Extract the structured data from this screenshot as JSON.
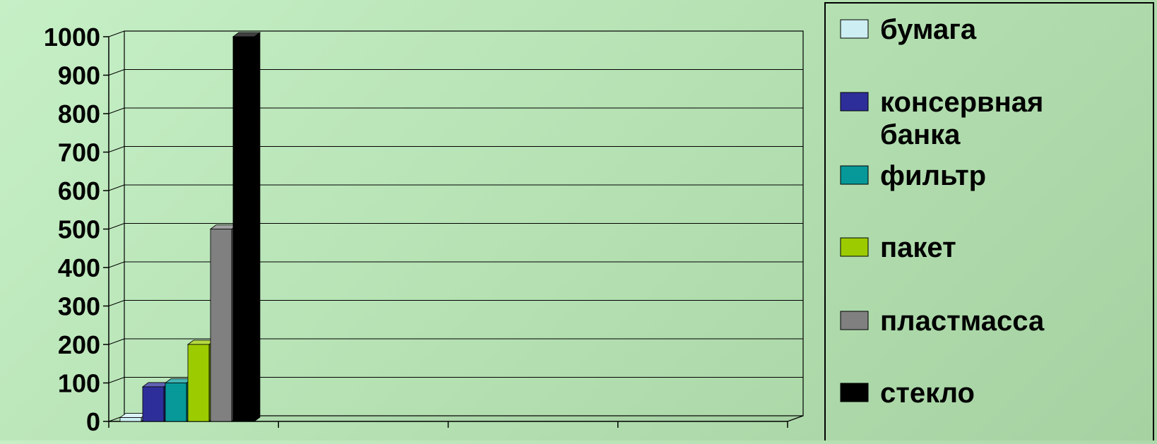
{
  "chart_data": {
    "type": "bar",
    "categories": [
      ""
    ],
    "series": [
      {
        "name": "бумага",
        "values": [
          10
        ],
        "color": "#cdeef2"
      },
      {
        "name": "консервная банка",
        "values": [
          90
        ],
        "color": "#2e2e9a"
      },
      {
        "name": "фильтр",
        "values": [
          100
        ],
        "color": "#079999"
      },
      {
        "name": "пакет",
        "values": [
          200
        ],
        "color": "#9ccc00"
      },
      {
        "name": "пластмасса",
        "values": [
          500
        ],
        "color": "#808080"
      },
      {
        "name": "стекло",
        "values": [
          1000
        ],
        "color": "#000000"
      }
    ],
    "ylim": [
      0,
      1000
    ],
    "yticks": [
      "0",
      "100",
      "200",
      "300",
      "400",
      "500",
      "600",
      "700",
      "800",
      "900",
      "1000"
    ],
    "x_category_slots": 4,
    "grid": true,
    "legend_position": "right",
    "style": "3d-bars",
    "legend_labels": [
      [
        "бумага"
      ],
      [
        "консервная",
        "банка"
      ],
      [
        "фильтр"
      ],
      [
        "пакет"
      ],
      [
        "пластмасса"
      ],
      [
        "стекло"
      ]
    ]
  }
}
